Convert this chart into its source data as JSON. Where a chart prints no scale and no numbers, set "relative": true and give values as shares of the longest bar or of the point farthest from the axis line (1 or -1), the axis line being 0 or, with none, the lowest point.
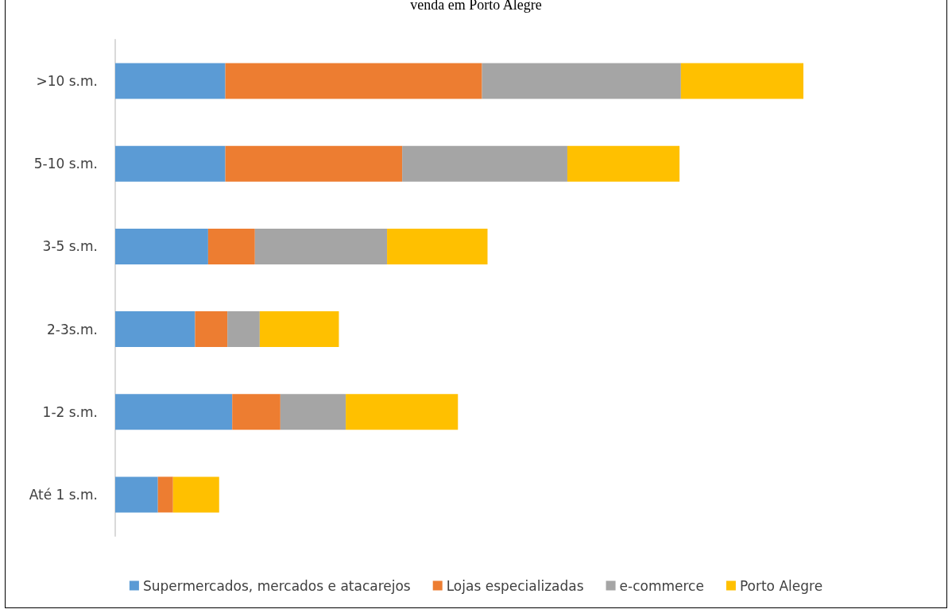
{
  "chart_data": {
    "type": "bar",
    "title": "venda em Porto Alegre",
    "orientation": "horizontal",
    "stacked": true,
    "relative": true,
    "legend": "bottom",
    "categories": [
      ">10 s.m.",
      "5-10 s.m.",
      "3-5 s.m.",
      "2-3s.m.",
      "1-2 s.m.",
      "Até 1 s.m."
    ],
    "series": [
      {
        "name": "Supermercados, mercados e atacarejos",
        "color": "#5b9bd5",
        "values": [
          0.16,
          0.16,
          0.135,
          0.116,
          0.17,
          0.062
        ]
      },
      {
        "name": "Lojas especializadas",
        "color": "#ed7d31",
        "values": [
          0.373,
          0.257,
          0.068,
          0.047,
          0.07,
          0.022
        ]
      },
      {
        "name": "e-commerce",
        "color": "#a5a5a5",
        "values": [
          0.289,
          0.24,
          0.192,
          0.047,
          0.095,
          0
        ]
      },
      {
        "name": "Porto Alegre",
        "color": "#ffc000",
        "values": [
          0.178,
          0.163,
          0.146,
          0.115,
          0.163,
          0.067
        ]
      }
    ]
  }
}
